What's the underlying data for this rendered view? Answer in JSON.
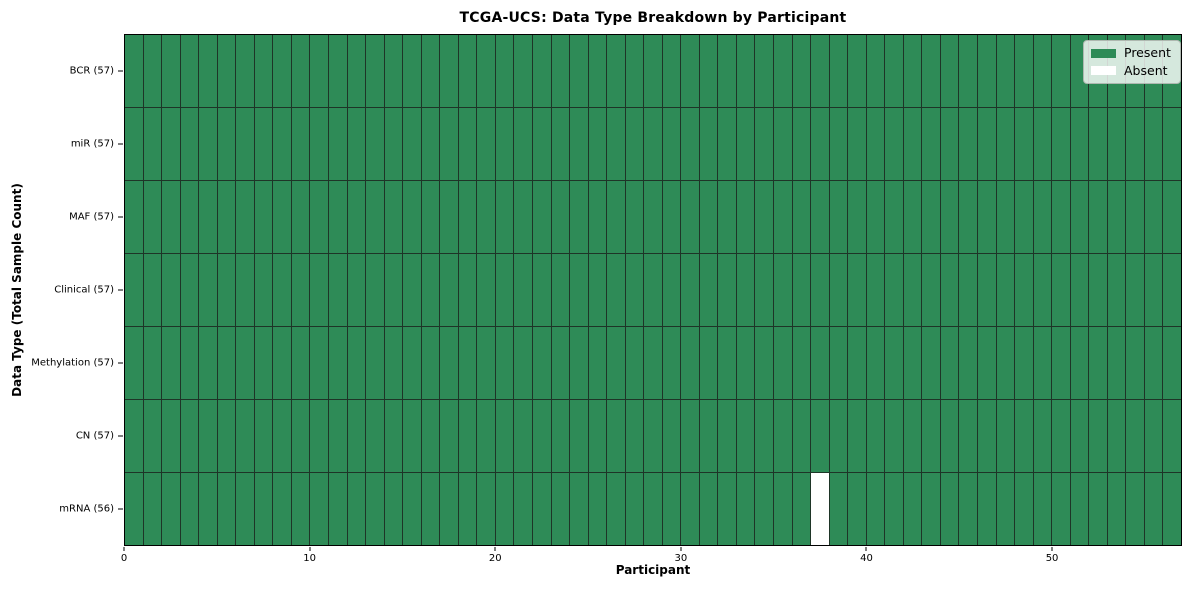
{
  "chart_data": {
    "type": "heatmap",
    "title": "TCGA-UCS: Data Type Breakdown by Participant",
    "xlabel": "Participant",
    "ylabel": "Data Type (Total Sample Count)",
    "n_participants": 57,
    "x_range": [
      0,
      57
    ],
    "x_ticks": [
      0,
      10,
      20,
      30,
      40,
      50
    ],
    "rows": [
      {
        "label": "BCR (57)",
        "data_type": "BCR",
        "sample_count": 57,
        "absent_participants": []
      },
      {
        "label": "miR (57)",
        "data_type": "miR",
        "sample_count": 57,
        "absent_participants": []
      },
      {
        "label": "MAF (57)",
        "data_type": "MAF",
        "sample_count": 57,
        "absent_participants": []
      },
      {
        "label": "Clinical (57)",
        "data_type": "Clinical",
        "sample_count": 57,
        "absent_participants": []
      },
      {
        "label": "Methylation (57)",
        "data_type": "Methylation",
        "sample_count": 57,
        "absent_participants": []
      },
      {
        "label": "CN (57)",
        "data_type": "CN",
        "sample_count": 57,
        "absent_participants": []
      },
      {
        "label": "mRNA (56)",
        "data_type": "mRNA",
        "sample_count": 56,
        "absent_participants": [
          37
        ]
      }
    ],
    "colors": {
      "present": "#2e8b57",
      "absent": "#ffffff",
      "cell_edge": "#1e3527",
      "spine": "#000000"
    },
    "legend": {
      "position": "upper right",
      "entries": [
        {
          "label": "Present",
          "color": "#2e8b57"
        },
        {
          "label": "Absent",
          "color": "#ffffff"
        }
      ]
    },
    "grid": "cell-borders"
  }
}
